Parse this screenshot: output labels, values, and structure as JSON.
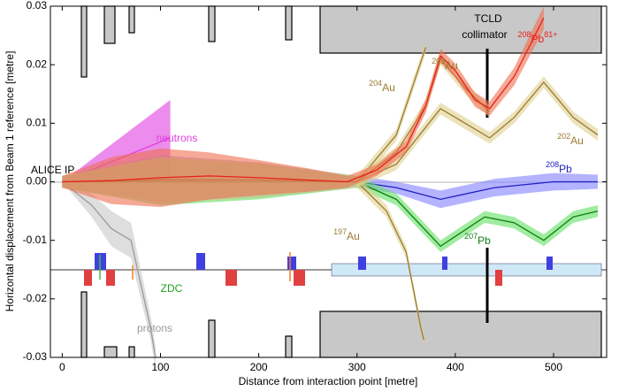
{
  "chart_data": {
    "type": "line",
    "xlabel": "Distance from interaction point [metre]",
    "ylabel": "Horizontal displacement from Beam 1 reference [metre]",
    "xlim": [
      -12,
      554
    ],
    "ylim": [
      -0.03,
      0.03
    ],
    "xticks": [
      0,
      100,
      200,
      300,
      400,
      500
    ],
    "yticks": [
      -0.03,
      -0.02,
      -0.01,
      {
        "value": 0,
        "label": "0.00"
      },
      0.01,
      0.02,
      0.03
    ],
    "grid": false,
    "annotations": [
      "ALICE IP",
      "TCLD",
      "collimator",
      "ZDC"
    ],
    "series": [
      {
        "label": {
          "mass": "",
          "symbol": "protons",
          "charge": ""
        },
        "color": "#9a9a9a",
        "band_color": "#c8c8c8",
        "x": [
          0,
          30,
          50,
          70,
          90,
          95
        ],
        "values": [
          0,
          -0.004,
          -0.008,
          -0.01,
          -0.025,
          -0.03
        ],
        "spread": [
          0,
          0.002,
          0.003,
          0.003,
          0.002,
          0.002
        ]
      },
      {
        "label": {
          "mass": "",
          "symbol": "neutrons",
          "charge": ""
        },
        "color": "#e040e0",
        "band_color": "#e040e0",
        "x": [
          0,
          110
        ],
        "values": [
          0,
          0.0075
        ],
        "spread": [
          0,
          0.0065
        ]
      },
      {
        "label": {
          "mass": "208",
          "symbol": "Pb",
          "charge": ""
        },
        "color": "#2020c0",
        "band_color": "#8080ff",
        "x": [
          0,
          100,
          200,
          300,
          340,
          385,
          440,
          500,
          545
        ],
        "values": [
          0,
          0.0005,
          0.0003,
          0,
          -0.001,
          -0.003,
          -0.001,
          0,
          0
        ],
        "spread": [
          0.001,
          0.004,
          0.003,
          0.001,
          0.001,
          0.0015,
          0.0015,
          0.0015,
          0.0012
        ]
      },
      {
        "label": {
          "mass": "207",
          "symbol": "Pb",
          "charge": ""
        },
        "color": "#108010",
        "band_color": "#60e060",
        "x": [
          0,
          100,
          200,
          300,
          340,
          385,
          430,
          460,
          490,
          520,
          545
        ],
        "values": [
          0,
          0,
          0,
          0,
          -0.003,
          -0.011,
          -0.006,
          -0.007,
          -0.01,
          -0.006,
          -0.005
        ],
        "spread": [
          0.001,
          0.004,
          0.003,
          0.001,
          0.001,
          0.001,
          0.001,
          0.001,
          0.001,
          0.001,
          0.001
        ]
      },
      {
        "label": {
          "mass": "197",
          "symbol": "Au",
          "charge": ""
        },
        "color": "#9a7a30",
        "band_color": "#e0d090",
        "x": [
          300,
          330,
          350,
          365,
          368
        ],
        "values": [
          0,
          -0.005,
          -0.012,
          -0.025,
          -0.027
        ],
        "spread": [
          0.001,
          0.001,
          0.001,
          0.001,
          0.001
        ]
      },
      {
        "label": {
          "mass": "202",
          "symbol": "Au",
          "charge": ""
        },
        "color": "#9a7a30",
        "band_color": "#e0d090",
        "x": [
          0,
          100,
          200,
          300,
          340,
          385,
          420,
          435,
          460,
          490,
          520,
          545
        ],
        "values": [
          0,
          0.0003,
          0.0003,
          0,
          0.003,
          0.0125,
          0.009,
          0.0075,
          0.011,
          0.017,
          0.011,
          0.008
        ],
        "spread": [
          0.001,
          0.004,
          0.003,
          0.001,
          0.001,
          0.001,
          0.001,
          0.001,
          0.001,
          0.001,
          0.001,
          0.001
        ]
      },
      {
        "label": {
          "mass": "204",
          "symbol": "Au",
          "charge": ""
        },
        "color": "#9a7a30",
        "band_color": "#e0d090",
        "x": [
          300,
          340,
          360,
          370
        ],
        "values": [
          0,
          0.008,
          0.018,
          0.023
        ],
        "spread": [
          0.001,
          0.001,
          0.001,
          0.001
        ]
      },
      {
        "label": {
          "mass": "203",
          "symbol": "Au",
          "charge": ""
        },
        "color": "#9a7a30",
        "band_color": "#e0d090",
        "x": [
          300,
          340,
          370,
          385,
          410,
          435
        ],
        "values": [
          0,
          0.005,
          0.013,
          0.021,
          0.016,
          0.012
        ],
        "spread": [
          0.001,
          0.001,
          0.001,
          0.001,
          0.001,
          0.001
        ]
      },
      {
        "label": {
          "mass": "208",
          "symbol": "Pb",
          "charge": "81+"
        },
        "color": "#e8201a",
        "band_color": "#ee7050",
        "x": [
          0,
          50,
          100,
          150,
          200,
          250,
          290,
          320,
          350,
          370,
          385,
          400,
          420,
          435,
          460,
          490
        ],
        "values": [
          0,
          0.0002,
          0.0007,
          0.001,
          0.0007,
          0.0003,
          0,
          0.002,
          0.006,
          0.013,
          0.0215,
          0.019,
          0.014,
          0.0125,
          0.018,
          0.028
        ],
        "spread": [
          0.001,
          0.004,
          0.005,
          0.004,
          0.003,
          0.002,
          0.001,
          0.001,
          0.001,
          0.0012,
          0.0012,
          0.0012,
          0.0012,
          0.0012,
          0.0015,
          0.002
        ]
      }
    ]
  }
}
